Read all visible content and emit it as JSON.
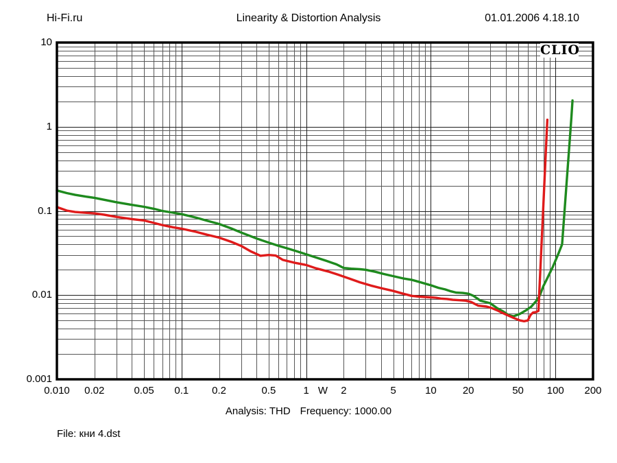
{
  "header": {
    "brand": "Hi-Fi.ru",
    "title": "Linearity & Distortion Analysis",
    "datetime": "01.01.2006 4.18.10"
  },
  "footer": {
    "analysis": "Analysis: THD",
    "frequency": "Frequency: 1000.00",
    "file": "File: кни 4.dst"
  },
  "chart_data": {
    "type": "line",
    "logo": "CLIO",
    "title": "Linearity & Distortion Analysis",
    "x_axis": {
      "scale": "log",
      "min": 0.01,
      "max": 200,
      "unit": "W",
      "unit_position": 1.36,
      "ticks": [
        {
          "label": "0.010",
          "value": 0.01
        },
        {
          "label": "0.02",
          "value": 0.02
        },
        {
          "label": "0.05",
          "value": 0.05
        },
        {
          "label": "0.1",
          "value": 0.1
        },
        {
          "label": "0.2",
          "value": 0.2
        },
        {
          "label": "0.5",
          "value": 0.5
        },
        {
          "label": "1",
          "value": 1
        },
        {
          "label": "2",
          "value": 2
        },
        {
          "label": "5",
          "value": 5
        },
        {
          "label": "10",
          "value": 10
        },
        {
          "label": "20",
          "value": 20
        },
        {
          "label": "50",
          "value": 50
        },
        {
          "label": "100",
          "value": 100
        },
        {
          "label": "200",
          "value": 200
        }
      ]
    },
    "y_axis": {
      "scale": "log",
      "min": 0.001,
      "max": 10,
      "ticks": [
        {
          "label": "10",
          "value": 10
        },
        {
          "label": "1",
          "value": 1
        },
        {
          "label": "0.1",
          "value": 0.1
        },
        {
          "label": "0.01",
          "value": 0.01
        },
        {
          "label": "0.001",
          "value": 0.001
        }
      ]
    },
    "grid": {
      "minor_color": "#565656",
      "major_color": "#1c1c1c",
      "border_color": "#000000"
    },
    "series": [
      {
        "name": "thd-green-curve",
        "color": "#1e8a1e",
        "points": [
          [
            0.01,
            0.175
          ],
          [
            0.012,
            0.163
          ],
          [
            0.014,
            0.155
          ],
          [
            0.017,
            0.148
          ],
          [
            0.02,
            0.143
          ],
          [
            0.025,
            0.134
          ],
          [
            0.03,
            0.127
          ],
          [
            0.04,
            0.118
          ],
          [
            0.05,
            0.112
          ],
          [
            0.06,
            0.106
          ],
          [
            0.07,
            0.1
          ],
          [
            0.085,
            0.0955
          ],
          [
            0.1,
            0.0915
          ],
          [
            0.13,
            0.0835
          ],
          [
            0.16,
            0.0765
          ],
          [
            0.2,
            0.07
          ],
          [
            0.25,
            0.062
          ],
          [
            0.3,
            0.0555
          ],
          [
            0.4,
            0.047
          ],
          [
            0.5,
            0.042
          ],
          [
            0.6,
            0.0385
          ],
          [
            0.71,
            0.0358
          ],
          [
            0.85,
            0.033
          ],
          [
            1.0,
            0.0305
          ],
          [
            1.2,
            0.028
          ],
          [
            1.45,
            0.0255
          ],
          [
            1.75,
            0.0232
          ],
          [
            2.0,
            0.021
          ],
          [
            2.3,
            0.0206
          ],
          [
            2.7,
            0.0203
          ],
          [
            3.0,
            0.02
          ],
          [
            3.6,
            0.0189
          ],
          [
            4.2,
            0.0178
          ],
          [
            5.0,
            0.0168
          ],
          [
            6.0,
            0.0158
          ],
          [
            7.0,
            0.0152
          ],
          [
            8.0,
            0.0144
          ],
          [
            9.0,
            0.0137
          ],
          [
            10,
            0.0131
          ],
          [
            11.5,
            0.0122
          ],
          [
            13,
            0.0117
          ],
          [
            14.5,
            0.0111
          ],
          [
            16,
            0.0107
          ],
          [
            18,
            0.0106
          ],
          [
            20,
            0.0104
          ],
          [
            22,
            0.0098
          ],
          [
            25,
            0.0086
          ],
          [
            30,
            0.008
          ],
          [
            34,
            0.007
          ],
          [
            38,
            0.0064
          ],
          [
            42,
            0.0058
          ],
          [
            46,
            0.0056
          ],
          [
            52,
            0.006
          ],
          [
            58,
            0.0066
          ],
          [
            64,
            0.0073
          ],
          [
            70,
            0.0085
          ],
          [
            75,
            0.01
          ],
          [
            80,
            0.0128
          ],
          [
            87,
            0.0165
          ],
          [
            95,
            0.0215
          ],
          [
            104,
            0.0295
          ],
          [
            113,
            0.04
          ],
          [
            119,
            0.114
          ],
          [
            125,
            0.31
          ],
          [
            130,
            0.68
          ],
          [
            134,
            1.26
          ],
          [
            137,
            2.05
          ]
        ]
      },
      {
        "name": "thd-red-curve",
        "color": "#df1b1b",
        "points": [
          [
            0.01,
            0.111
          ],
          [
            0.012,
            0.101
          ],
          [
            0.014,
            0.097
          ],
          [
            0.017,
            0.095
          ],
          [
            0.02,
            0.0935
          ],
          [
            0.024,
            0.09
          ],
          [
            0.03,
            0.085
          ],
          [
            0.04,
            0.08
          ],
          [
            0.05,
            0.077
          ],
          [
            0.06,
            0.072
          ],
          [
            0.07,
            0.068
          ],
          [
            0.085,
            0.064
          ],
          [
            0.1,
            0.0615
          ],
          [
            0.13,
            0.0565
          ],
          [
            0.16,
            0.0522
          ],
          [
            0.2,
            0.0482
          ],
          [
            0.25,
            0.043
          ],
          [
            0.3,
            0.0385
          ],
          [
            0.36,
            0.033
          ],
          [
            0.43,
            0.0293
          ],
          [
            0.5,
            0.03
          ],
          [
            0.57,
            0.0295
          ],
          [
            0.65,
            0.0262
          ],
          [
            0.8,
            0.0243
          ],
          [
            1.0,
            0.0228
          ],
          [
            1.2,
            0.0208
          ],
          [
            1.5,
            0.0191
          ],
          [
            1.8,
            0.0175
          ],
          [
            2.2,
            0.0158
          ],
          [
            2.7,
            0.0142
          ],
          [
            3.3,
            0.013
          ],
          [
            4.0,
            0.0121
          ],
          [
            5.0,
            0.0112
          ],
          [
            6.0,
            0.0104
          ],
          [
            7.0,
            0.0098
          ],
          [
            8.0,
            0.0096
          ],
          [
            9.0,
            0.0095
          ],
          [
            10,
            0.0094
          ],
          [
            11,
            0.0093
          ],
          [
            12,
            0.0091
          ],
          [
            13.5,
            0.009
          ],
          [
            15,
            0.0088
          ],
          [
            17,
            0.0087
          ],
          [
            19,
            0.0086
          ],
          [
            21,
            0.0083
          ],
          [
            24,
            0.0075
          ],
          [
            28,
            0.0073
          ],
          [
            31,
            0.007
          ],
          [
            34,
            0.0066
          ],
          [
            37,
            0.0062
          ],
          [
            42,
            0.0057
          ],
          [
            47,
            0.0053
          ],
          [
            52,
            0.005
          ],
          [
            56,
            0.0049
          ],
          [
            60,
            0.005
          ],
          [
            63,
            0.0058
          ],
          [
            66,
            0.0062
          ],
          [
            70,
            0.0063
          ],
          [
            73,
            0.0065
          ],
          [
            76,
            0.0235
          ],
          [
            79,
            0.081
          ],
          [
            82,
            0.266
          ],
          [
            84,
            0.577
          ],
          [
            86,
            1.21
          ]
        ]
      }
    ]
  }
}
